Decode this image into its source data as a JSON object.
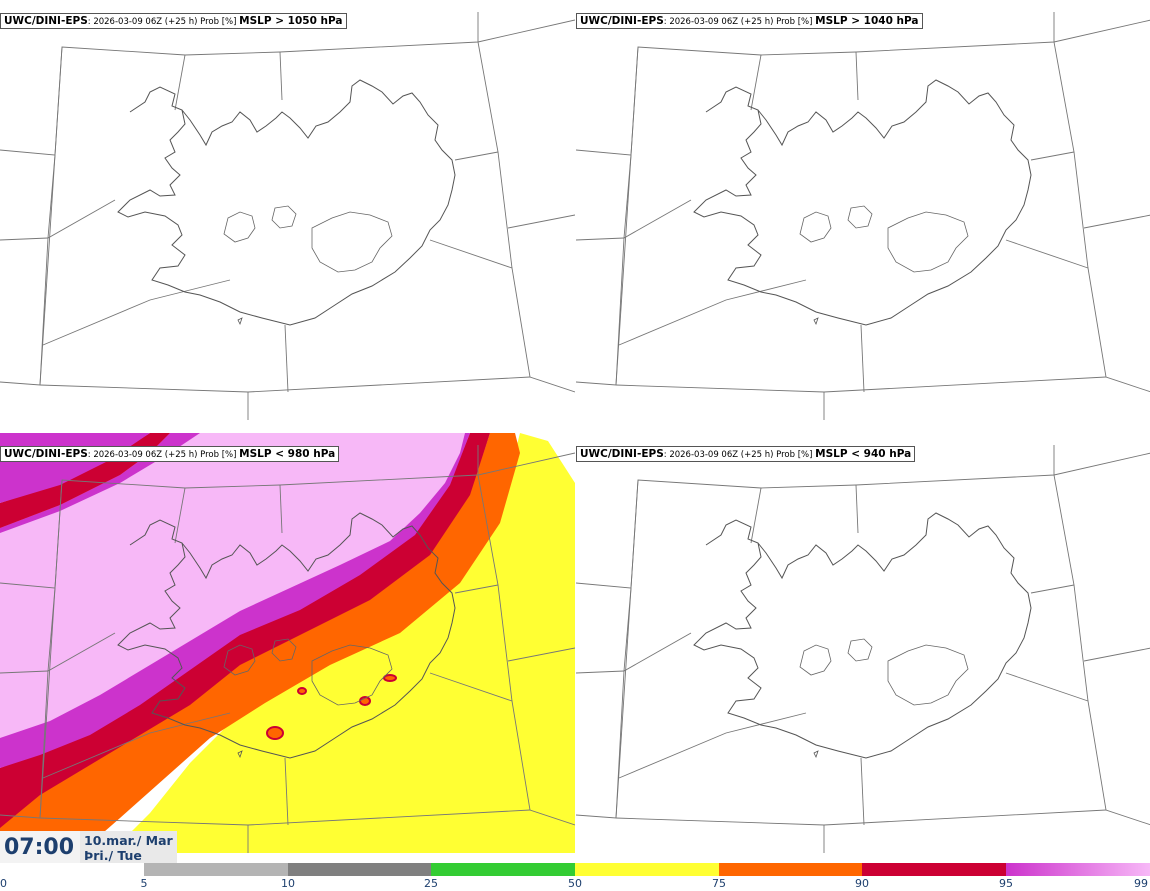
{
  "panels": [
    {
      "id": "tl",
      "source": "UWC/DINI-EPS",
      "meta": ": 2026-03-09 06Z (+25 h) Prob [%] ",
      "variable": "MSLP > 1050 hPa",
      "filled": false
    },
    {
      "id": "tr",
      "source": "UWC/DINI-EPS",
      "meta": ": 2026-03-09 06Z (+25 h) Prob [%] ",
      "variable": "MSLP > 1040 hPa",
      "filled": false
    },
    {
      "id": "bl",
      "source": "UWC/DINI-EPS",
      "meta": ": 2026-03-09 06Z (+25 h) Prob [%] ",
      "variable": "MSLP < 980 hPa",
      "filled": true
    },
    {
      "id": "br",
      "source": "UWC/DINI-EPS",
      "meta": ": 2026-03-09 06Z (+25 h) Prob [%] ",
      "variable": "MSLP < 940 hPa",
      "filled": false
    }
  ],
  "clock": {
    "time": "07:00",
    "date_line1": "10.mar./ Mar",
    "date_line2": "Þri./ Tue"
  },
  "legend": {
    "ticks": [
      "0",
      "5",
      "10",
      "25",
      "50",
      "75",
      "90",
      "95",
      "99"
    ],
    "colors": [
      "#ffffff",
      "#b4b4b4",
      "#7f7f7f",
      "#33cc33",
      "#ffff33",
      "#ff6600",
      "#cc0033",
      "#cc33cc",
      "#f7b8f7"
    ]
  }
}
